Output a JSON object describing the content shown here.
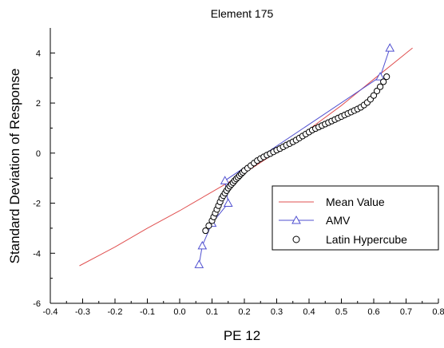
{
  "chart_data": {
    "type": "scatter",
    "title": "Element 175",
    "xlabel": "PE 12",
    "ylabel": "Standard Deviation of Response",
    "xlim": [
      -0.4,
      0.8
    ],
    "ylim": [
      -6,
      5
    ],
    "xticks": [
      -0.4,
      -0.3,
      -0.2,
      -0.1,
      0.0,
      0.1,
      0.2,
      0.3,
      0.4,
      0.5,
      0.6,
      0.7,
      0.8
    ],
    "xtick_labels": [
      "-0.4",
      "-0.3",
      "-0.2",
      "-0.1",
      "0.0",
      "0.1",
      "0.2",
      "0.3",
      "0.4",
      "0.5",
      "0.6",
      "0.7",
      "0.8"
    ],
    "yticks": [
      -6,
      -4,
      -2,
      0,
      2,
      4
    ],
    "ytick_labels": [
      "-6",
      "-4",
      "-2",
      "0",
      "2",
      "4"
    ],
    "grid": false,
    "legend_position": "lower-right",
    "series": [
      {
        "name": "Mean Value",
        "kind": "line",
        "color": "#e05050",
        "x": [
          -0.31,
          -0.2,
          -0.1,
          0.0,
          0.1,
          0.2,
          0.3,
          0.4,
          0.5,
          0.6,
          0.72
        ],
        "y": [
          -4.5,
          -3.75,
          -3.0,
          -2.3,
          -1.55,
          -0.8,
          0.05,
          0.95,
          1.9,
          2.95,
          4.2
        ]
      },
      {
        "name": "AMV",
        "kind": "line-triangle",
        "color": "#5050d0",
        "x": [
          0.06,
          0.07,
          0.1,
          0.15,
          0.14,
          0.62,
          0.65
        ],
        "y": [
          -4.45,
          -3.7,
          -2.8,
          -2.0,
          -1.1,
          3.05,
          4.2
        ]
      },
      {
        "name": "Latin Hypercube",
        "kind": "scatter-circle",
        "color": "#000000",
        "x": [
          0.08,
          0.09,
          0.1,
          0.105,
          0.11,
          0.115,
          0.12,
          0.125,
          0.13,
          0.135,
          0.14,
          0.145,
          0.15,
          0.155,
          0.16,
          0.165,
          0.17,
          0.175,
          0.18,
          0.185,
          0.19,
          0.195,
          0.2,
          0.21,
          0.22,
          0.23,
          0.24,
          0.25,
          0.26,
          0.27,
          0.28,
          0.29,
          0.3,
          0.31,
          0.32,
          0.33,
          0.34,
          0.35,
          0.36,
          0.37,
          0.38,
          0.39,
          0.4,
          0.41,
          0.42,
          0.43,
          0.44,
          0.45,
          0.46,
          0.47,
          0.48,
          0.49,
          0.5,
          0.51,
          0.52,
          0.53,
          0.54,
          0.55,
          0.56,
          0.57,
          0.58,
          0.59,
          0.6,
          0.61,
          0.62,
          0.63,
          0.64
        ],
        "y": [
          -3.1,
          -2.9,
          -2.7,
          -2.55,
          -2.4,
          -2.25,
          -2.1,
          -1.95,
          -1.8,
          -1.7,
          -1.6,
          -1.5,
          -1.4,
          -1.32,
          -1.25,
          -1.18,
          -1.1,
          -1.03,
          -0.97,
          -0.9,
          -0.83,
          -0.77,
          -0.7,
          -0.6,
          -0.5,
          -0.4,
          -0.3,
          -0.22,
          -0.15,
          -0.08,
          -0.02,
          0.05,
          0.12,
          0.18,
          0.25,
          0.32,
          0.38,
          0.45,
          0.52,
          0.6,
          0.68,
          0.76,
          0.84,
          0.92,
          0.98,
          1.04,
          1.1,
          1.16,
          1.22,
          1.28,
          1.34,
          1.4,
          1.46,
          1.52,
          1.58,
          1.64,
          1.7,
          1.76,
          1.83,
          1.92,
          2.02,
          2.15,
          2.3,
          2.48,
          2.65,
          2.85,
          3.05
        ]
      }
    ]
  }
}
